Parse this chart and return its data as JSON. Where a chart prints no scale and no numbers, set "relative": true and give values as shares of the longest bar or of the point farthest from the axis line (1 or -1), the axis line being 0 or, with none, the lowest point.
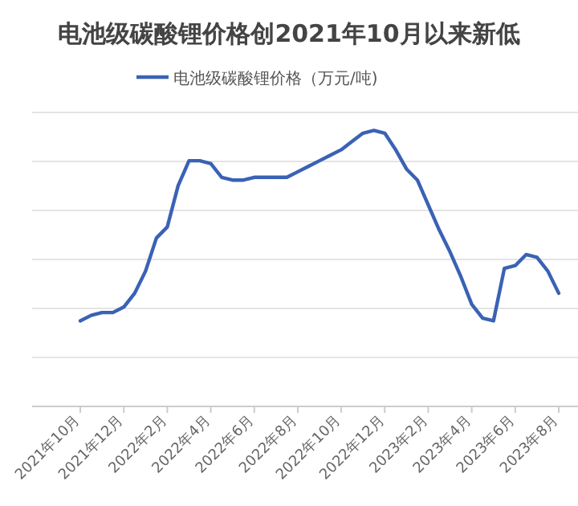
{
  "chart_data": {
    "type": "line",
    "title": "电池级碳酸锂价格创2021年10月以来新低",
    "relative": true,
    "grid": "y",
    "legend": "top",
    "marker": "none",
    "line_style": "solid",
    "categories": [
      "2021年10月",
      null,
      null,
      null,
      "2021年12月",
      null,
      null,
      null,
      "2022年2月",
      null,
      null,
      null,
      "2022年4月",
      null,
      null,
      null,
      "2022年6月",
      null,
      null,
      null,
      "2022年8月",
      null,
      null,
      null,
      "2022年10月",
      null,
      null,
      null,
      "2022年12月",
      null,
      null,
      null,
      "2023年2月",
      null,
      null,
      null,
      "2023年4月",
      null,
      null,
      null,
      "2023年6月",
      null,
      null,
      null,
      "2023年8月"
    ],
    "series": [
      {
        "name": "电池级碳酸锂价格（万元/吨)",
        "color": "#3a62b5",
        "values": [
          0.31,
          0.33,
          0.34,
          0.34,
          0.36,
          0.41,
          0.49,
          0.61,
          0.65,
          0.8,
          0.89,
          0.89,
          0.88,
          0.83,
          0.82,
          0.82,
          0.83,
          0.83,
          0.83,
          0.83,
          0.85,
          0.87,
          0.89,
          0.91,
          0.93,
          0.96,
          0.99,
          1,
          0.99,
          0.93,
          0.86,
          0.82,
          0.73,
          0.64,
          0.56,
          0.47,
          0.37,
          0.32,
          0.31,
          0.5,
          0.51,
          0.55,
          0.54,
          0.49,
          0.41
        ]
      }
    ]
  }
}
